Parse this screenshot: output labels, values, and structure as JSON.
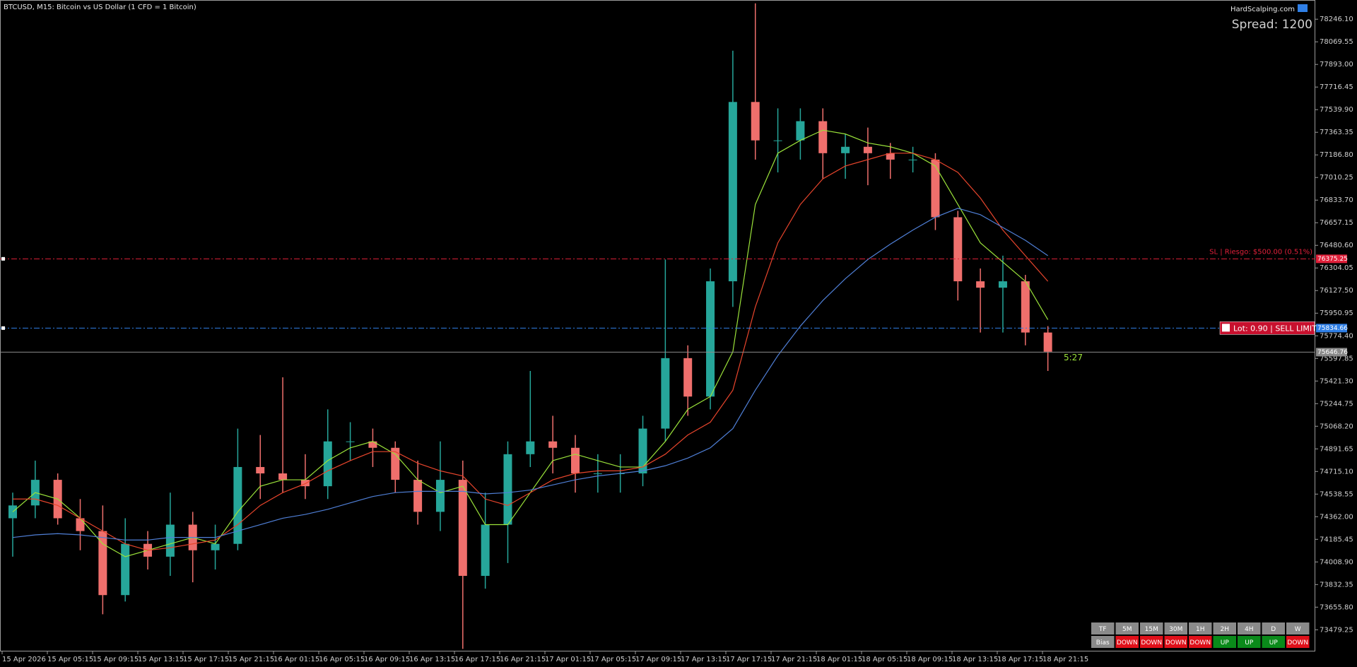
{
  "header": {
    "symbol": "BTCUSD, M15:  Bitcoin vs US Dollar (1 CFD = 1 Bitcoin)",
    "brand": "HardScalping.com",
    "spread": "Spread: 1200"
  },
  "chart_data": {
    "type": "candlestick",
    "open": [
      74350,
      74450,
      74650,
      74350,
      74250,
      73750,
      74150,
      74050,
      74300,
      74100,
      74150,
      74750,
      74700,
      74650,
      74600,
      74950,
      74950,
      74900,
      74650,
      74400,
      74650,
      73900,
      74300,
      74850,
      74950,
      74900,
      74700,
      74700,
      74700,
      75050,
      75600,
      75300,
      76200,
      77600,
      77300,
      77300,
      77450,
      77200,
      77250,
      77200,
      77150,
      77150,
      76700,
      76200,
      76150,
      76200,
      75800
    ],
    "high": [
      74550,
      74800,
      74700,
      74500,
      74450,
      74350,
      74250,
      74550,
      74400,
      74300,
      75050,
      75000,
      75450,
      74850,
      75200,
      75100,
      75050,
      74950,
      74800,
      74950,
      74800,
      74550,
      74950,
      75500,
      75150,
      75000,
      74850,
      74850,
      75150,
      76370,
      75700,
      76300,
      78000,
      78370,
      77550,
      77550,
      77550,
      77350,
      77400,
      77280,
      77250,
      77200,
      76750,
      76300,
      76400,
      76250,
      75850
    ],
    "low": [
      74050,
      74350,
      74300,
      74100,
      73600,
      73700,
      73950,
      73900,
      73850,
      73950,
      74100,
      74500,
      74550,
      74500,
      74500,
      74800,
      74750,
      74550,
      74300,
      74250,
      73330,
      73800,
      74000,
      74750,
      74700,
      74550,
      74550,
      74550,
      74600,
      74950,
      75150,
      75200,
      76000,
      77150,
      77050,
      77150,
      77000,
      77000,
      76950,
      77000,
      77050,
      76600,
      76050,
      75800,
      75800,
      75700,
      75500
    ],
    "close": [
      74450,
      74650,
      74350,
      74250,
      73750,
      74150,
      74050,
      74300,
      74100,
      74150,
      74750,
      74700,
      74650,
      74600,
      74950,
      74950,
      74900,
      74650,
      74400,
      74650,
      73900,
      74300,
      74850,
      74950,
      74900,
      74700,
      74700,
      74700,
      75050,
      75600,
      75300,
      76200,
      77600,
      77300,
      77300,
      77450,
      77200,
      77250,
      77200,
      77150,
      77150,
      76700,
      76200,
      76150,
      76200,
      75800,
      75650
    ],
    "up_color": "#26a69a",
    "down_color": "#ef6f6c",
    "series": [
      {
        "color": "#9be33a",
        "values": [
          74400,
          74550,
          74500,
          74350,
          74150,
          74050,
          74100,
          74150,
          74200,
          74150,
          74400,
          74600,
          74650,
          74650,
          74800,
          74900,
          74950,
          74850,
          74650,
          74550,
          74600,
          74300,
          74300,
          74550,
          74800,
          74850,
          74800,
          74750,
          74750,
          74950,
          75200,
          75300,
          75650,
          76800,
          77200,
          77300,
          77380,
          77350,
          77280,
          77250,
          77200,
          77100,
          76800,
          76500,
          76350,
          76200,
          75900
        ]
      },
      {
        "color": "#e8452c",
        "values": [
          74500,
          74500,
          74450,
          74350,
          74250,
          74150,
          74100,
          74120,
          74150,
          74180,
          74300,
          74450,
          74550,
          74620,
          74720,
          74800,
          74870,
          74870,
          74780,
          74720,
          74680,
          74500,
          74450,
          74550,
          74650,
          74700,
          74720,
          74720,
          74750,
          74850,
          75000,
          75100,
          75350,
          76000,
          76500,
          76800,
          77000,
          77100,
          77150,
          77200,
          77200,
          77150,
          77050,
          76850,
          76600,
          76400,
          76200
        ]
      },
      {
        "color": "#4f7fd6",
        "values": [
          74200,
          74220,
          74230,
          74220,
          74200,
          74180,
          74180,
          74200,
          74200,
          74200,
          74250,
          74300,
          74350,
          74380,
          74420,
          74470,
          74520,
          74550,
          74560,
          74560,
          74560,
          74540,
          74550,
          74570,
          74610,
          74650,
          74680,
          74700,
          74720,
          74760,
          74820,
          74900,
          75050,
          75350,
          75620,
          75850,
          76050,
          76220,
          76370,
          76490,
          76600,
          76700,
          76770,
          76720,
          76620,
          76520,
          76400
        ]
      }
    ],
    "ylim": [
      73310,
      78374
    ],
    "yticks": [
      {
        "value": 78246.1,
        "label": "78246.10"
      },
      78069.55,
      {
        "value": 77893,
        "label": "77893.00"
      },
      77716.45,
      {
        "value": 77539.9,
        "label": "77539.90"
      },
      77363.35,
      {
        "value": 77186.8,
        "label": "77186.80"
      },
      77010.25,
      {
        "value": 76833.7,
        "label": "76833.70"
      },
      76657.15,
      {
        "value": 76480.6,
        "label": "76480.60"
      },
      76304.05,
      {
        "value": 76127.5,
        "label": "76127.50"
      },
      75950.95,
      {
        "value": 75774.4,
        "label": "75774.40"
      },
      75597.85,
      {
        "value": 75421.3,
        "label": "75421.30"
      },
      75244.75,
      {
        "value": 75068.2,
        "label": "75068.20"
      },
      74891.65,
      {
        "value": 74715.1,
        "label": "74715.10"
      },
      74538.55,
      {
        "value": 74362,
        "label": "74362.00"
      },
      74185.45,
      {
        "value": 74008.9,
        "label": "74008.90"
      },
      73832.35,
      {
        "value": 73655.8,
        "label": "73655.80"
      },
      73479.25
    ],
    "x_labels": [
      "15 Apr 2026",
      "15 Apr 05:15",
      "15 Apr 09:15",
      "15 Apr 13:15",
      "15 Apr 17:15",
      "15 Apr 21:15",
      "16 Apr 01:15",
      "16 Apr 05:15",
      "16 Apr 09:15",
      "16 Apr 13:15",
      "16 Apr 17:15",
      "16 Apr 21:15",
      "17 Apr 01:15",
      "17 Apr 05:15",
      "17 Apr 09:15",
      "17 Apr 13:15",
      "17 Apr 17:15",
      "17 Apr 21:15",
      "18 Apr 01:15",
      "18 Apr 05:15",
      "18 Apr 09:15",
      "18 Apr 13:15",
      "18 Apr 17:15",
      "18 Apr 21:15"
    ],
    "levels": [
      {
        "value": 76375.25,
        "text": "SL | Riesgo: $500.00 (0.51%)",
        "color": "#e0203a"
      },
      {
        "value": 75834.66,
        "text": "Lot: 0.90 | SELL LIMIT",
        "color": "#2f7fe6"
      },
      {
        "value": 75646.76,
        "color": "#8a8a8a"
      }
    ],
    "countdown": "5:27"
  },
  "bias_table": {
    "rows": [
      [
        "TF",
        "5M",
        "15M",
        "30M",
        "1H",
        "2H",
        "4H",
        "D",
        "W"
      ],
      [
        "Bias",
        "DOWN",
        "DOWN",
        "DOWN",
        "DOWN",
        "UP",
        "UP",
        "UP",
        "DOWN"
      ]
    ],
    "colors": [
      [
        "#8a8a8a",
        "#8a8a8a",
        "#8a8a8a",
        "#8a8a8a",
        "#8a8a8a",
        "#8a8a8a",
        "#8a8a8a",
        "#8a8a8a",
        "#8a8a8a"
      ],
      [
        "#8a8a8a",
        "#e0101a",
        "#e0101a",
        "#e0101a",
        "#e0101a",
        "#0a8a1a",
        "#0a8a1a",
        "#0a8a1a",
        "#e0101a"
      ]
    ]
  }
}
